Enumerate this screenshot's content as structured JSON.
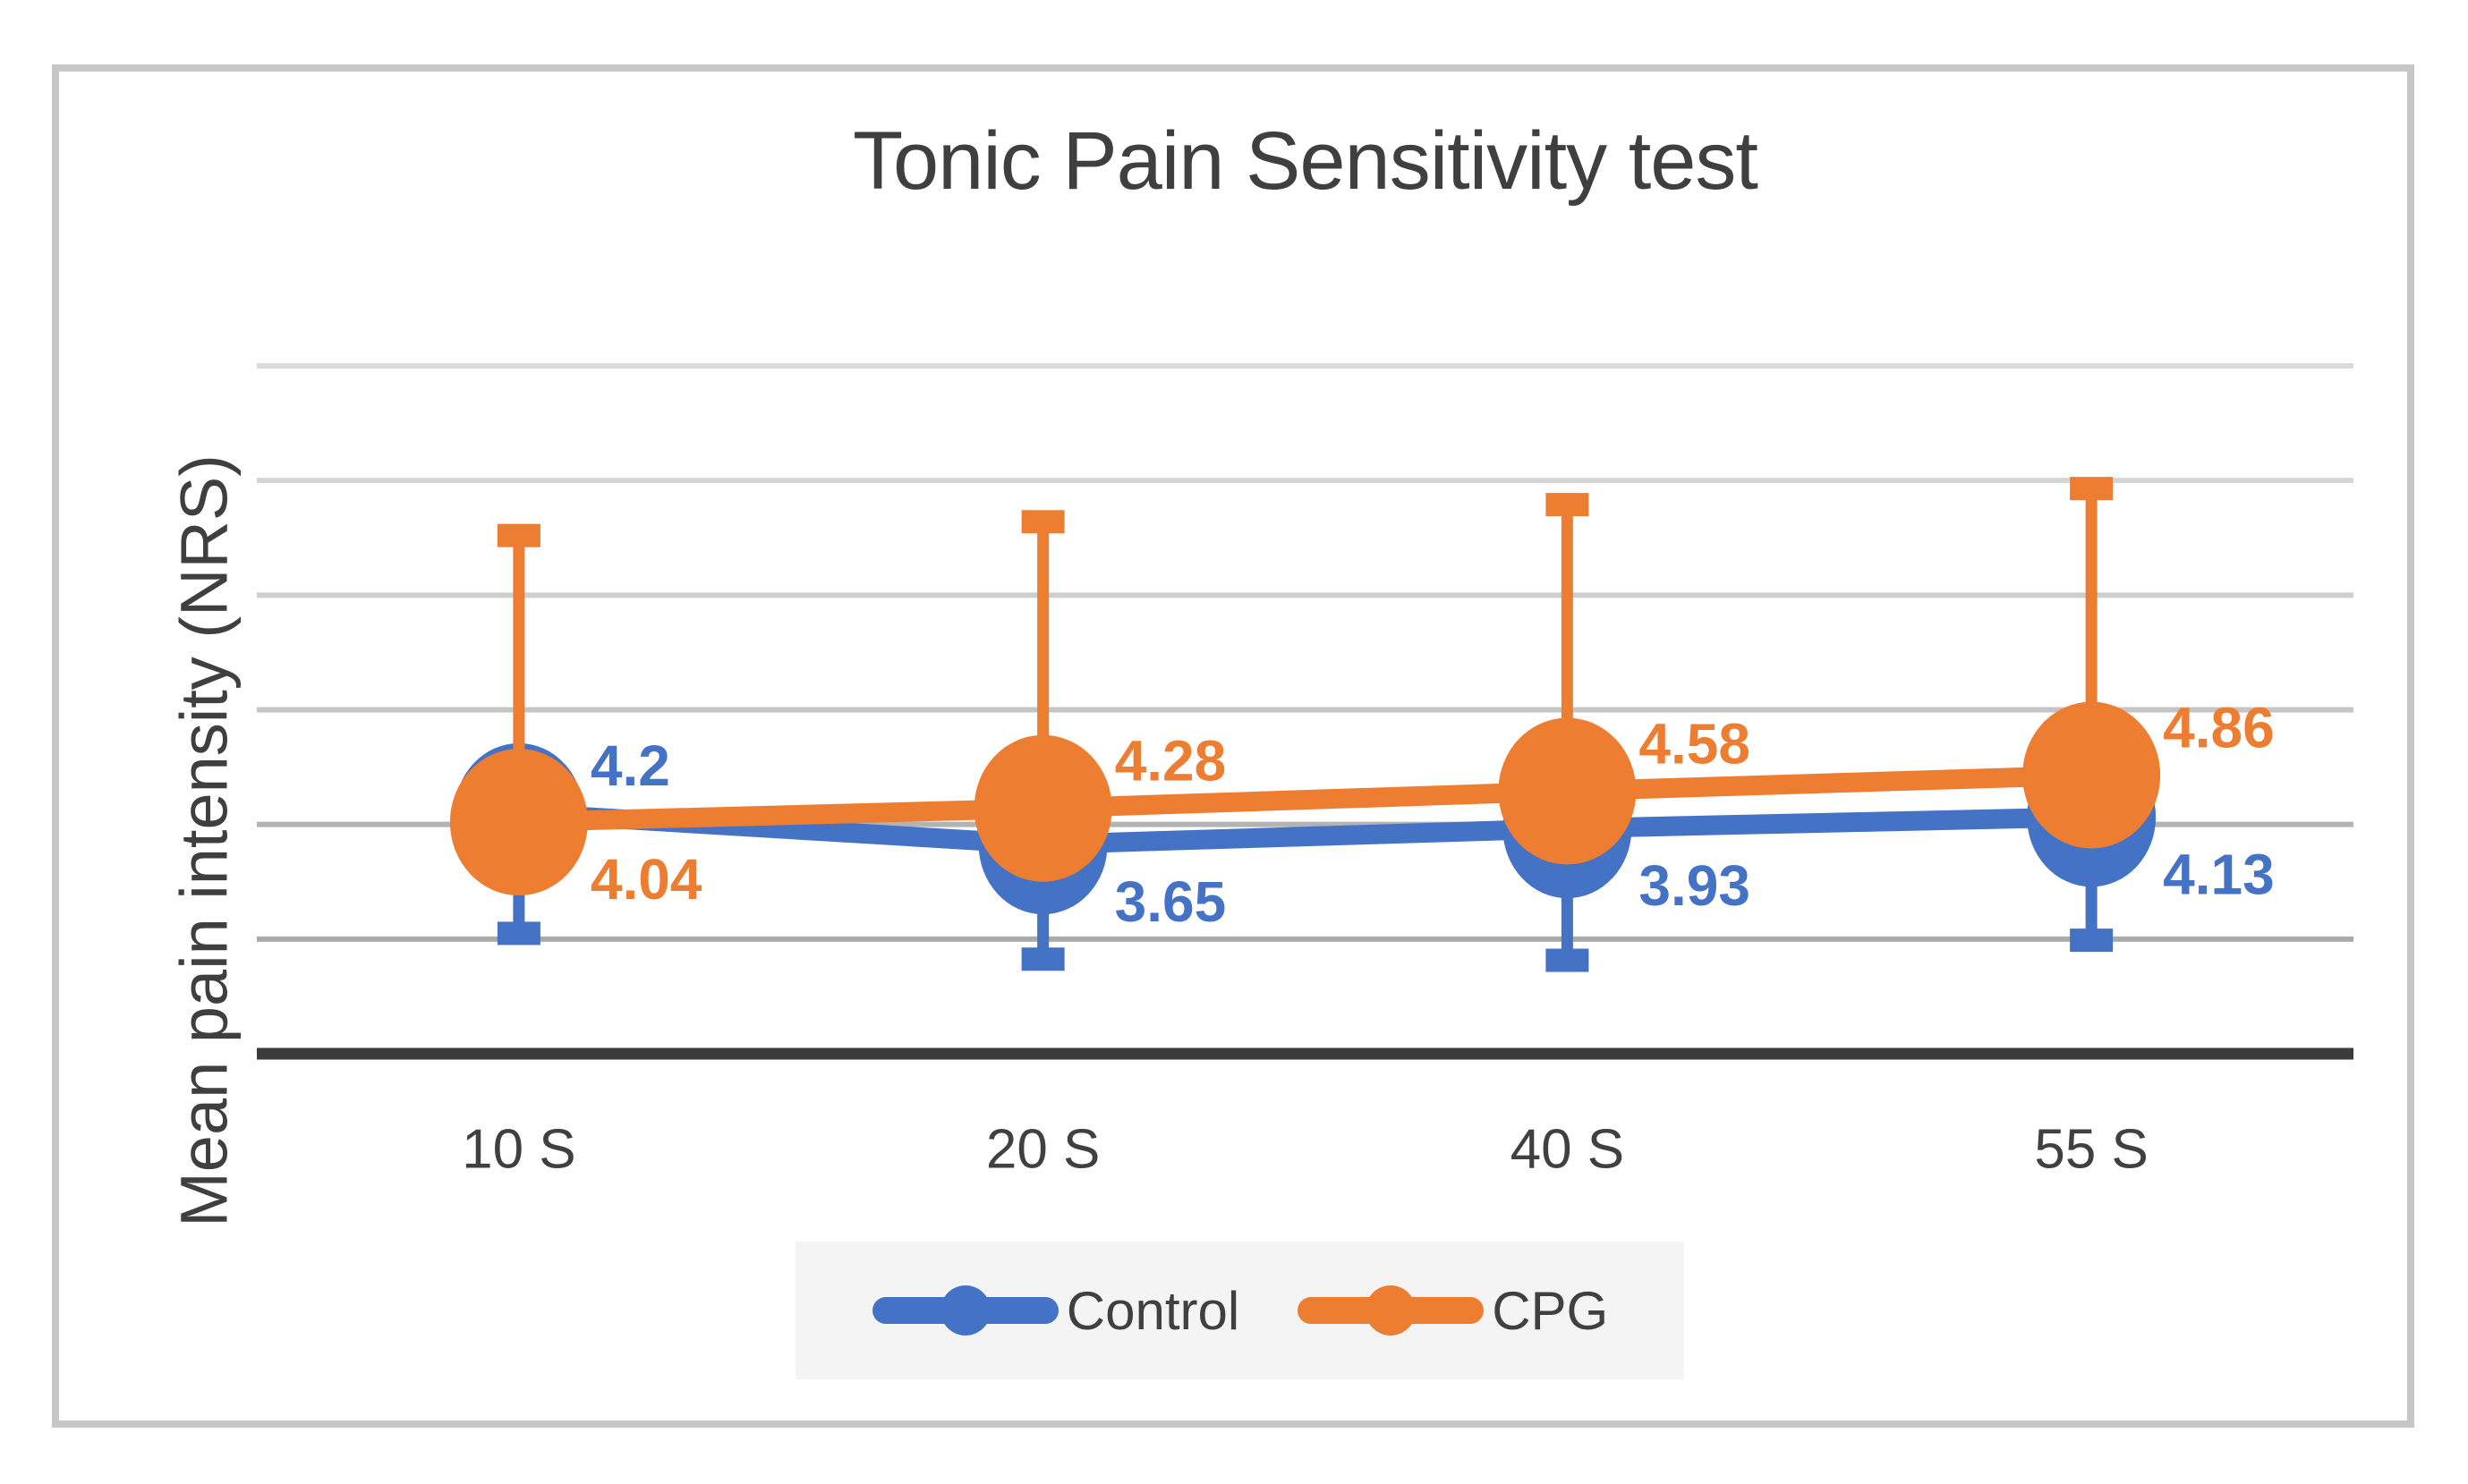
{
  "chart_data": {
    "type": "line",
    "title": "Tonic Pain Sensitivity test",
    "ylabel": "Mean pain intensity (NRS)",
    "xlabel": "",
    "categories": [
      "10 S",
      "20 S",
      "40 S",
      "55 S"
    ],
    "series": [
      {
        "name": "Control",
        "color": "#4472C4",
        "values": [
          4.2,
          3.65,
          3.93,
          4.13
        ],
        "data_labels": [
          "4.2",
          "3.65",
          "3.93",
          "4.13"
        ],
        "label_position": [
          "above",
          "below",
          "below",
          "below"
        ],
        "error_bars": {
          "direction": "minus",
          "values": [
            2.1,
            2.0,
            2.3,
            2.15
          ]
        }
      },
      {
        "name": "CPG",
        "color": "#ED7D31",
        "values": [
          4.04,
          4.28,
          4.58,
          4.86
        ],
        "data_labels": [
          "4.04",
          "4.28",
          "4.58",
          "4.86"
        ],
        "label_position": [
          "below",
          "above",
          "above",
          "above"
        ],
        "error_bars": {
          "direction": "plus",
          "values": [
            5.0,
            5.0,
            5.0,
            5.0
          ]
        }
      }
    ],
    "ylim": [
      0,
      12
    ],
    "gridline_step": 2,
    "grid": true,
    "y_tick_labels_visible": false,
    "legend_position": "bottom"
  },
  "styles": {
    "background": "#FFFFFF",
    "figure_border_color": "#C6C6C6",
    "title_color": "#3F3F3F",
    "tick_label_color": "#404040",
    "axis_line_color": "#3B3B3B",
    "legend_bg": "#F4F4F4",
    "gridline_colors_top_to_bottom": [
      "#dbdbdb",
      "#d5d5d5",
      "#cecece",
      "#c5c5c5",
      "#b3b3b3",
      "#ababab"
    ]
  }
}
